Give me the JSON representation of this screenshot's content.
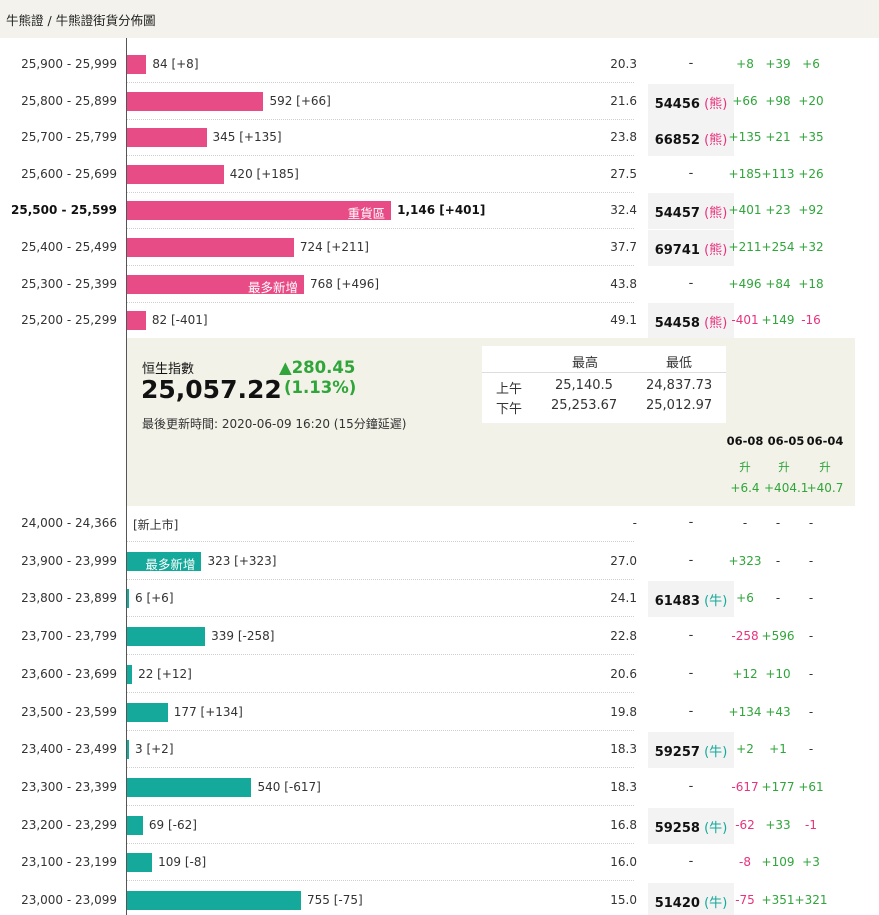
{
  "breadcrumb": "牛熊證 / 牛熊證街貨分佈圖",
  "bear_rows": [
    {
      "range": "25,900 - 25,999",
      "qty": 84,
      "label": "84 [+8]",
      "tag": "",
      "bold": false,
      "pct": "20.3",
      "code": "-",
      "type": "",
      "c1": "+8",
      "c2": "+39",
      "c3": "+6"
    },
    {
      "range": "25,800 - 25,899",
      "qty": 592,
      "label": "592 [+66]",
      "tag": "",
      "bold": false,
      "pct": "21.6",
      "code": "54456",
      "type": "熊",
      "c1": "+66",
      "c2": "+98",
      "c3": "+20"
    },
    {
      "range": "25,700 - 25,799",
      "qty": 345,
      "label": "345 [+135]",
      "tag": "",
      "bold": false,
      "pct": "23.8",
      "code": "66852",
      "type": "熊",
      "c1": "+135",
      "c2": "+21",
      "c3": "+35"
    },
    {
      "range": "25,600 - 25,699",
      "qty": 420,
      "label": "420 [+185]",
      "tag": "",
      "bold": false,
      "pct": "27.5",
      "code": "-",
      "type": "",
      "c1": "+185",
      "c2": "+113",
      "c3": "+26"
    },
    {
      "range": "25,500 - 25,599",
      "qty": 1146,
      "label": "1,146 [+401]",
      "tag": "重貨區",
      "bold": true,
      "pct": "32.4",
      "code": "54457",
      "type": "熊",
      "c1": "+401",
      "c2": "+23",
      "c3": "+92"
    },
    {
      "range": "25,400 - 25,499",
      "qty": 724,
      "label": "724 [+211]",
      "tag": "",
      "bold": false,
      "pct": "37.7",
      "code": "69741",
      "type": "熊",
      "c1": "+211",
      "c2": "+254",
      "c3": "+32"
    },
    {
      "range": "25,300 - 25,399",
      "qty": 768,
      "label": "768 [+496]",
      "tag": "最多新增",
      "bold": false,
      "pct": "43.8",
      "code": "-",
      "type": "",
      "c1": "+496",
      "c2": "+84",
      "c3": "+18"
    },
    {
      "range": "25,200 - 25,299",
      "qty": 82,
      "label": "82 [-401]",
      "tag": "",
      "bold": false,
      "pct": "49.1",
      "code": "54458",
      "type": "熊",
      "c1": "-401",
      "c2": "+149",
      "c3": "-16"
    }
  ],
  "hsi": {
    "name": "恒生指數",
    "value": "25,057.22",
    "change": "▲280.45",
    "change_pct": "(1.13%)",
    "updated": "最後更新時間: 2020-06-09 16:20 (15分鐘延遲)",
    "col_high": "最高",
    "col_low": "最低",
    "am_label": "上午",
    "am_high": "25,140.5",
    "am_low": "24,837.73",
    "pm_label": "下午",
    "pm_high": "25,253.67",
    "pm_low": "25,012.97",
    "dates": [
      "06-08",
      "06-05",
      "06-04"
    ],
    "trend": [
      "升",
      "升",
      "升"
    ],
    "sums": [
      "+6.4",
      "+404.1",
      "+40.7"
    ]
  },
  "bull_rows": [
    {
      "range": "24,000 - 24,366",
      "qty": 0,
      "label": "[新上市]",
      "tag": "",
      "bold": false,
      "pct": "-",
      "code": "-",
      "type": "",
      "c1": "-",
      "c2": "-",
      "c3": "-"
    },
    {
      "range": "23,900 - 23,999",
      "qty": 323,
      "label": "323 [+323]",
      "tag": "最多新增",
      "bold": false,
      "pct": "27.0",
      "code": "-",
      "type": "",
      "c1": "+323",
      "c2": "-",
      "c3": "-"
    },
    {
      "range": "23,800 - 23,899",
      "qty": 6,
      "label": "6 [+6]",
      "tag": "",
      "bold": false,
      "pct": "24.1",
      "code": "61483",
      "type": "牛",
      "c1": "+6",
      "c2": "-",
      "c3": "-"
    },
    {
      "range": "23,700 - 23,799",
      "qty": 339,
      "label": "339 [-258]",
      "tag": "",
      "bold": false,
      "pct": "22.8",
      "code": "-",
      "type": "",
      "c1": "-258",
      "c2": "+596",
      "c3": "-"
    },
    {
      "range": "23,600 - 23,699",
      "qty": 22,
      "label": "22 [+12]",
      "tag": "",
      "bold": false,
      "pct": "20.6",
      "code": "-",
      "type": "",
      "c1": "+12",
      "c2": "+10",
      "c3": "-"
    },
    {
      "range": "23,500 - 23,599",
      "qty": 177,
      "label": "177 [+134]",
      "tag": "",
      "bold": false,
      "pct": "19.8",
      "code": "-",
      "type": "",
      "c1": "+134",
      "c2": "+43",
      "c3": "-"
    },
    {
      "range": "23,400 - 23,499",
      "qty": 3,
      "label": "3 [+2]",
      "tag": "",
      "bold": false,
      "pct": "18.3",
      "code": "59257",
      "type": "牛",
      "c1": "+2",
      "c2": "+1",
      "c3": "-"
    },
    {
      "range": "23,300 - 23,399",
      "qty": 540,
      "label": "540 [-617]",
      "tag": "",
      "bold": false,
      "pct": "18.3",
      "code": "-",
      "type": "",
      "c1": "-617",
      "c2": "+177",
      "c3": "+61"
    },
    {
      "range": "23,200 - 23,299",
      "qty": 69,
      "label": "69 [-62]",
      "tag": "",
      "bold": false,
      "pct": "16.8",
      "code": "59258",
      "type": "牛",
      "c1": "-62",
      "c2": "+33",
      "c3": "-1"
    },
    {
      "range": "23,100 - 23,199",
      "qty": 109,
      "label": "109 [-8]",
      "tag": "",
      "bold": false,
      "pct": "16.0",
      "code": "-",
      "type": "",
      "c1": "-8",
      "c2": "+109",
      "c3": "+3"
    },
    {
      "range": "23,000 - 23,099",
      "qty": 755,
      "label": "755 [-75]",
      "tag": "",
      "bold": false,
      "pct": "15.0",
      "code": "51420",
      "type": "牛",
      "c1": "-75",
      "c2": "+351",
      "c3": "+321"
    }
  ],
  "colors": {
    "bear": "#e84c86",
    "bull": "#14a99a",
    "positive": "#2fa53a",
    "negative": "#e8327e"
  }
}
